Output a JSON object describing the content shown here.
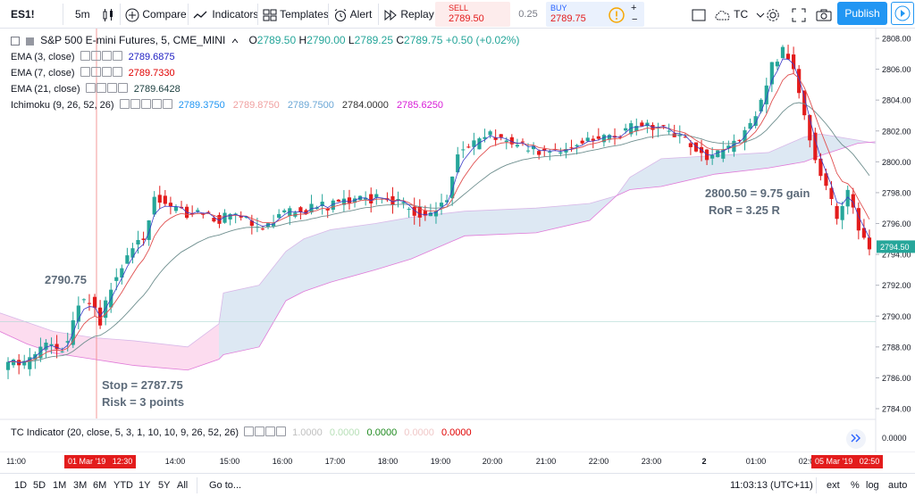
{
  "toolbar": {
    "symbol": "ES1!",
    "interval": "5m",
    "compare": "Compare",
    "indicators": "Indicators",
    "templates": "Templates",
    "alert": "Alert",
    "replay": "Replay",
    "sell_label": "SELL",
    "sell_price": "2789.50",
    "spread": "0.25",
    "buy_label": "BUY",
    "buy_price": "2789.75",
    "layout_name": "TC",
    "publish": "Publish"
  },
  "legend": {
    "title": "S&P 500 E-mini Futures, 5, CME_MINI",
    "ohlc": {
      "o_label": "O",
      "o": "2789.50",
      "h_label": "H",
      "h": "2790.00",
      "l_label": "L",
      "l": "2789.25",
      "c_label": "C",
      "c": "2789.75",
      "change": "+0.50 (+0.02%)"
    },
    "ema3": {
      "label": "EMA (3, close)",
      "value": "2789.6875",
      "color": "#1c1cc2"
    },
    "ema7": {
      "label": "EMA (7, close)",
      "value": "2789.7330",
      "color": "#e00000"
    },
    "ema21": {
      "label": "EMA (21, close)",
      "value": "2789.6428",
      "color": "#1a3e3e"
    },
    "ichimoku": {
      "label": "Ichimoku (9, 26, 52, 26)",
      "values": [
        "2789.3750",
        "2789.8750",
        "2789.7500",
        "2784.0000",
        "2785.6250"
      ],
      "colors": [
        "#2196f3",
        "#f0a0a0",
        "#6ba7d6",
        "#333333",
        "#d81bd8"
      ]
    }
  },
  "annotations": {
    "entry": "2790.75",
    "stop": "Stop = 2787.75",
    "risk": "Risk = 3 points",
    "target": "2800.50 = 9.75 gain",
    "ror": "RoR = 3.25 R"
  },
  "colors": {
    "up": "#26a69a",
    "down": "#e31c1c",
    "cloud_up": "#dde8f3",
    "cloud_down": "#fcdcef",
    "last_price_bg": "#26a69a"
  },
  "tc_indicator": {
    "label": "TC Indicator (20, close, 5, 3, 1, 10, 10, 9, 26, 52, 26)",
    "values": [
      "1.0000",
      "0.0000",
      "0.0000",
      "0.0000",
      "0.0000"
    ],
    "colors": [
      "#c0c0c0",
      "#b8e0b8",
      "#1f8a1f",
      "#f0c8c8",
      "#e00000"
    ],
    "axis_label": "0.0000"
  },
  "bottombar": {
    "ranges": [
      "1D",
      "5D",
      "1M",
      "3M",
      "6M",
      "YTD",
      "1Y",
      "5Y",
      "All"
    ],
    "goto": "Go to...",
    "clock": "11:03:13 (UTC+11)",
    "ext": "ext",
    "percent": "%",
    "log": "log",
    "auto": "auto"
  },
  "chart_data": {
    "type": "candlestick",
    "title": "S&P 500 E-mini Futures, 5, CME_MINI",
    "y_range": [
      2783.2,
      2808.8
    ],
    "y_ticks": [
      2808,
      2806,
      2804,
      2802,
      2800,
      2798,
      2796,
      2794,
      2792,
      2790,
      2788,
      2786,
      2784
    ],
    "y_tick_labels": [
      "2808.00",
      "2806.00",
      "2804.00",
      "2802.00",
      "2800.00",
      "2798.00",
      "2796.00",
      "2794.00",
      "2792.00",
      "2790.00",
      "2788.00",
      "2786.00",
      "2784.00"
    ],
    "last_price": 2794.5,
    "last_price_label": "2794.50",
    "x_labels": [
      "11:00",
      "14:00",
      "15:00",
      "16:00",
      "17:00",
      "18:00",
      "19:00",
      "20:00",
      "21:00",
      "22:00",
      "23:00",
      "2",
      "01:00",
      "02:00"
    ],
    "crosshair_label": "01 Mar '19   12:30",
    "last_time_label": "05 Mar '19   02:50",
    "price_path": [
      2786.5,
      2787.2,
      2786.8,
      2787.5,
      2788.0,
      2787.8,
      2788.2,
      2790.8,
      2791.0,
      2789.6,
      2792.0,
      2793.2,
      2794.5,
      2795.0,
      2797.8,
      2797.2,
      2797.0,
      2796.6,
      2796.8,
      2796.5,
      2796.2,
      2796.8,
      2796.5,
      2796.0,
      2795.8,
      2796.3,
      2796.6,
      2796.8,
      2796.9,
      2797.3,
      2797.1,
      2797.4,
      2797.6,
      2797.8,
      2797.5,
      2797.9,
      2797.4,
      2797.2,
      2796.8,
      2796.5,
      2796.8,
      2797.6,
      2800.5,
      2800.9,
      2801.3,
      2801.7,
      2801.5,
      2801.2,
      2801.0,
      2800.8,
      2800.7,
      2800.6,
      2801.0,
      2801.3,
      2801.4,
      2801.5,
      2801.6,
      2801.8,
      2802.2,
      2802.5,
      2802.3,
      2802.1,
      2801.8,
      2801.5,
      2800.7,
      2800.3,
      2800.5,
      2800.9,
      2801.5,
      2802.3,
      2804.0,
      2806.2,
      2807.2,
      2806.3,
      2803.2,
      2800.0,
      2798.6,
      2796.2,
      2797.9,
      2795.8,
      2794.4
    ]
  }
}
